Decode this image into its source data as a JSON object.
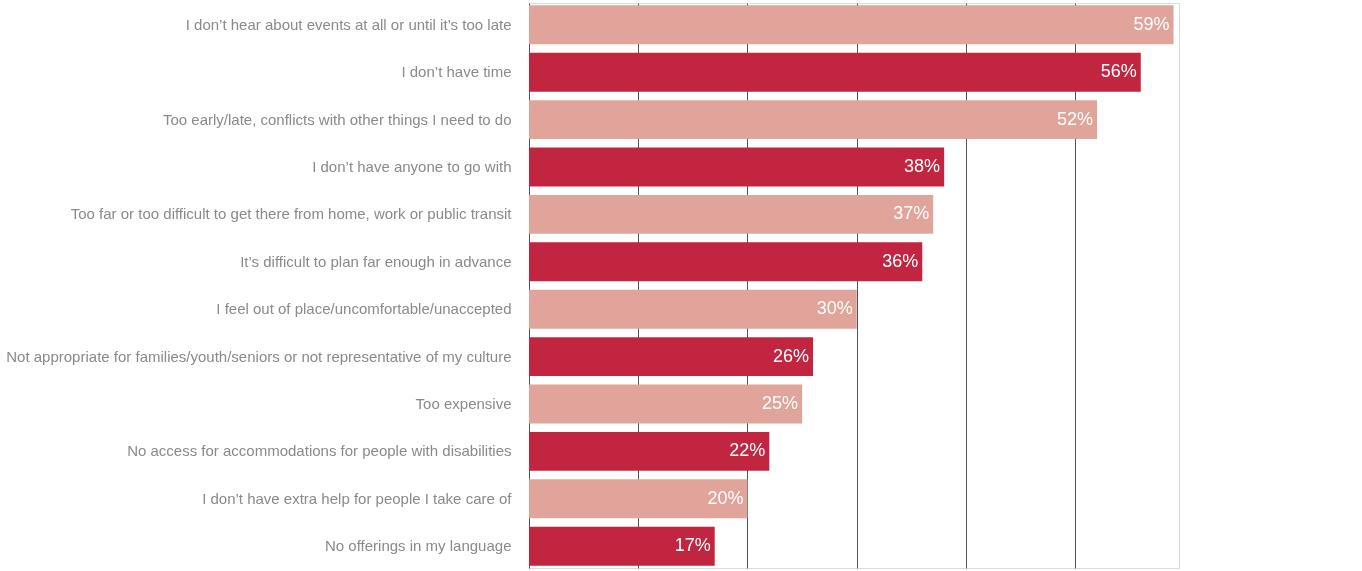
{
  "chart_data": {
    "type": "bar",
    "orientation": "horizontal",
    "categories": [
      "I don’t hear about events at all or until it’s too late",
      "I don’t have time",
      "Too early/late, conflicts with other things I need to do",
      "I don’t have anyone to go with",
      "Too far or too difficult to get there from home, work or public transit",
      "It’s difficult to plan far enough in advance",
      "I feel out of place/uncomfortable/unaccepted",
      "Not appropriate for families/youth/seniors or not representative of my culture",
      "Too expensive",
      "No access for accommodations for people with disabilities",
      "I don’t have extra help for people I take care of",
      "No offerings in my language"
    ],
    "values": [
      59,
      56,
      52,
      38,
      37,
      36,
      30,
      26,
      25,
      22,
      20,
      17
    ],
    "value_labels": [
      "59%",
      "56%",
      "52%",
      "38%",
      "37%",
      "36%",
      "30%",
      "26%",
      "25%",
      "22%",
      "20%",
      "17%"
    ],
    "colors": [
      "#e0a49a",
      "#c1253f",
      "#e0a49a",
      "#c1253f",
      "#e0a49a",
      "#c1253f",
      "#e0a49a",
      "#c1253f",
      "#e0a49a",
      "#c1253f",
      "#e0a49a",
      "#c1253f"
    ],
    "xlim": [
      0,
      59.5
    ],
    "xticks": [
      {
        "value": 0,
        "label": null
      },
      {
        "value": 10,
        "label": null
      },
      {
        "value": 20,
        "label": null
      },
      {
        "value": 30,
        "label": null
      },
      {
        "value": 40,
        "label": null
      },
      {
        "value": 50,
        "label": null
      }
    ],
    "grid": "x",
    "tick_labels": "y"
  }
}
